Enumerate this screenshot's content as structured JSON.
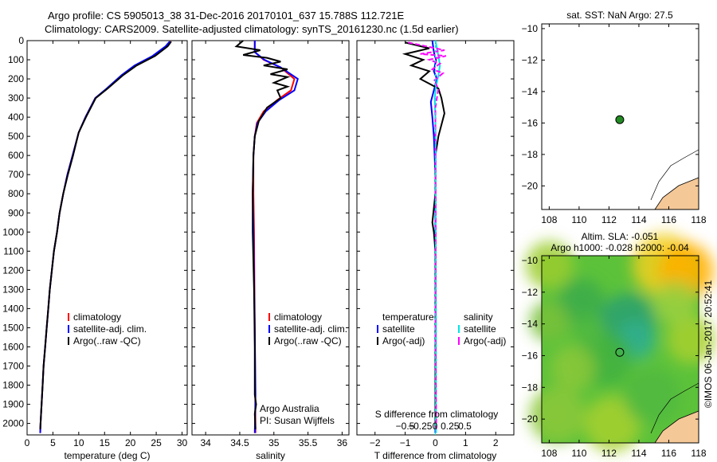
{
  "title_line1": "Argo profile: CS 5905013_38 31-Dec-2016 20170101_637 15.788S 112.721E",
  "title_line2": "Climatology: CARS2009. Satellite-adjusted climatology: synTS_20161230.nc (1.5d earlier)",
  "sst_title": "sat. SST: NaN Argo: 27.5",
  "sla_title1": "Altim. SLA: -0.051",
  "sla_title2": "Argo h1000: -0.028 h2000: -0.04",
  "watermark": "©IMOS 06-Jan-2017 20:52:41",
  "credit1": "Argo Australia",
  "credit2": "PI: Susan Wijffels",
  "s_diff_label": "S difference from climatology",
  "colors": {
    "climatology": "#ff0000",
    "satellite": "#0000ff",
    "argo": "#000000",
    "cyan": "#00e5e5",
    "magenta": "#ff00ff",
    "land": "#f5c898",
    "dot": "#228b22"
  },
  "chart_data": [
    {
      "type": "line",
      "name": "temperature",
      "xlabel": "temperature (deg C)",
      "ylabel": "",
      "xlim": [
        0,
        31
      ],
      "ylim": [
        2060,
        0
      ],
      "xticks": [
        0,
        5,
        10,
        15,
        20,
        25,
        30
      ],
      "yticks": [
        0,
        100,
        200,
        300,
        400,
        500,
        600,
        700,
        800,
        900,
        1000,
        1100,
        1200,
        1300,
        1400,
        1500,
        1600,
        1700,
        1800,
        1900,
        2000
      ],
      "legend": [
        "climatology",
        "satellite-adj. clim.",
        "Argo(..raw -QC)"
      ],
      "series": [
        {
          "name": "climatology",
          "color": "#ff0000",
          "points": [
            [
              27.8,
              5
            ],
            [
              27.0,
              30
            ],
            [
              24.5,
              80
            ],
            [
              21,
              130
            ],
            [
              18.5,
              180
            ],
            [
              15.5,
              250
            ],
            [
              13.2,
              300
            ],
            [
              11.3,
              400
            ],
            [
              10,
              480
            ],
            [
              8.8,
              600
            ],
            [
              7.8,
              700
            ],
            [
              7,
              800
            ],
            [
              6.3,
              900
            ],
            [
              5.8,
              1000
            ],
            [
              5.2,
              1100
            ],
            [
              4.8,
              1200
            ],
            [
              4.4,
              1300
            ],
            [
              4.1,
              1400
            ],
            [
              3.8,
              1500
            ],
            [
              3.5,
              1600
            ],
            [
              3.2,
              1700
            ],
            [
              3,
              1800
            ],
            [
              2.8,
              1900
            ],
            [
              2.6,
              2000
            ],
            [
              2.55,
              2050
            ]
          ]
        },
        {
          "name": "satellite-adj. clim.",
          "color": "#0000ff",
          "points": [
            [
              27.6,
              5
            ],
            [
              26.8,
              30
            ],
            [
              24.3,
              80
            ],
            [
              20.8,
              130
            ],
            [
              18.3,
              180
            ],
            [
              15.4,
              250
            ],
            [
              13.2,
              300
            ],
            [
              11.3,
              400
            ],
            [
              10,
              480
            ],
            [
              8.8,
              600
            ],
            [
              7.8,
              700
            ],
            [
              7,
              800
            ],
            [
              6.3,
              900
            ],
            [
              5.8,
              1000
            ],
            [
              5.2,
              1100
            ],
            [
              4.8,
              1200
            ],
            [
              4.4,
              1300
            ],
            [
              4.1,
              1400
            ],
            [
              3.8,
              1500
            ],
            [
              3.5,
              1600
            ],
            [
              3.2,
              1700
            ],
            [
              3,
              1800
            ],
            [
              2.8,
              1900
            ],
            [
              2.6,
              2000
            ],
            [
              2.55,
              2050
            ]
          ]
        },
        {
          "name": "Argo(..raw -QC)",
          "color": "#000000",
          "points": [
            [
              27.9,
              5
            ],
            [
              27.2,
              30
            ],
            [
              24.8,
              80
            ],
            [
              21.2,
              130
            ],
            [
              18.6,
              180
            ],
            [
              15.6,
              250
            ],
            [
              13.3,
              300
            ],
            [
              11.4,
              400
            ],
            [
              10,
              480
            ],
            [
              8.9,
              600
            ],
            [
              7.9,
              700
            ],
            [
              7,
              800
            ],
            [
              6.3,
              900
            ],
            [
              5.8,
              1000
            ],
            [
              5.2,
              1100
            ],
            [
              4.8,
              1200
            ],
            [
              4.4,
              1300
            ],
            [
              4.1,
              1400
            ],
            [
              3.8,
              1500
            ],
            [
              3.5,
              1600
            ],
            [
              3.2,
              1700
            ],
            [
              3,
              1800
            ],
            [
              2.8,
              1900
            ],
            [
              2.6,
              2000
            ],
            [
              2.55,
              2030
            ]
          ]
        }
      ]
    },
    {
      "type": "line",
      "name": "salinity",
      "xlabel": "salinity",
      "ylabel": "",
      "xlim": [
        33.8,
        36.1
      ],
      "ylim": [
        2060,
        0
      ],
      "xticks": [
        34,
        34.5,
        35,
        35.5,
        36
      ],
      "legend": [
        "climatology",
        "satellite-adj. clim.",
        "Argo(..raw -QC)"
      ],
      "series": [
        {
          "name": "climatology",
          "color": "#ff0000",
          "points": [
            [
              34.72,
              0
            ],
            [
              34.72,
              60
            ],
            [
              34.85,
              100
            ],
            [
              35.1,
              140
            ],
            [
              35.3,
              200
            ],
            [
              35.25,
              260
            ],
            [
              35.05,
              310
            ],
            [
              34.85,
              370
            ],
            [
              34.75,
              430
            ],
            [
              34.72,
              500
            ],
            [
              34.7,
              600
            ],
            [
              34.7,
              800
            ],
            [
              34.71,
              1000
            ],
            [
              34.72,
              1500
            ],
            [
              34.73,
              2050
            ]
          ]
        },
        {
          "name": "satellite-adj. clim.",
          "color": "#0000ff",
          "points": [
            [
              34.72,
              0
            ],
            [
              34.72,
              60
            ],
            [
              34.86,
              100
            ],
            [
              35.1,
              140
            ],
            [
              35.35,
              200
            ],
            [
              35.3,
              260
            ],
            [
              35.08,
              310
            ],
            [
              34.88,
              370
            ],
            [
              34.76,
              430
            ],
            [
              34.72,
              500
            ],
            [
              34.7,
              600
            ],
            [
              34.69,
              800
            ],
            [
              34.7,
              1000
            ],
            [
              34.72,
              1500
            ],
            [
              34.73,
              1850
            ],
            [
              34.72,
              2050
            ]
          ]
        },
        {
          "name": "Argo(..raw -QC)",
          "color": "#000000",
          "points": [
            [
              34.55,
              0
            ],
            [
              34.45,
              30
            ],
            [
              34.8,
              50
            ],
            [
              34.55,
              75
            ],
            [
              34.9,
              90
            ],
            [
              35.1,
              110
            ],
            [
              34.85,
              130
            ],
            [
              35.2,
              150
            ],
            [
              34.95,
              175
            ],
            [
              35.2,
              190
            ],
            [
              35.0,
              220
            ],
            [
              35.2,
              240
            ],
            [
              35.05,
              260
            ],
            [
              35.1,
              300
            ],
            [
              34.9,
              350
            ],
            [
              34.78,
              420
            ],
            [
              34.72,
              500
            ],
            [
              34.7,
              600
            ],
            [
              34.69,
              800
            ],
            [
              34.69,
              1000
            ],
            [
              34.71,
              1300
            ],
            [
              34.72,
              1600
            ],
            [
              34.72,
              1850
            ],
            [
              34.74,
              1900
            ],
            [
              34.72,
              1950
            ],
            [
              34.73,
              2030
            ]
          ]
        }
      ]
    },
    {
      "type": "line",
      "name": "difference",
      "xlabel": "T difference from climatology",
      "ylabel": "",
      "xlim": [
        -2.6,
        2.6
      ],
      "ylim": [
        2060,
        0
      ],
      "xticks": [
        -2,
        -1,
        0,
        1,
        2
      ],
      "x2label": "S difference from climatology",
      "x2ticks": [
        -0.5,
        -0.25,
        0,
        0.25,
        0.5
      ],
      "legend": [
        "temperature",
        "satellite",
        "Argo(-adj)",
        "salinity",
        "satellite",
        "Argo(-adj)"
      ],
      "series": [
        {
          "name": "temperature satellite",
          "color": "#0000ff",
          "points": [
            [
              -0.1,
              0
            ],
            [
              -0.05,
              60
            ],
            [
              0.02,
              100
            ],
            [
              -0.05,
              160
            ],
            [
              0.05,
              200
            ],
            [
              -0.05,
              260
            ],
            [
              -0.15,
              320
            ],
            [
              -0.1,
              400
            ],
            [
              -0.05,
              500
            ],
            [
              0,
              700
            ],
            [
              0,
              1000
            ],
            [
              0,
              1500
            ],
            [
              0,
              2050
            ]
          ]
        },
        {
          "name": "temperature Argo(-adj)",
          "color": "#000000",
          "points": [
            [
              -1.0,
              10
            ],
            [
              -0.2,
              40
            ],
            [
              -1.0,
              70
            ],
            [
              -0.4,
              100
            ],
            [
              -0.8,
              130
            ],
            [
              -0.2,
              160
            ],
            [
              -0.5,
              200
            ],
            [
              0.1,
              250
            ],
            [
              0.2,
              300
            ],
            [
              0.3,
              380
            ],
            [
              0.2,
              440
            ],
            [
              0.1,
              500
            ],
            [
              0,
              600
            ],
            [
              0,
              800
            ],
            [
              -0.1,
              950
            ],
            [
              -0.05,
              1000
            ],
            [
              0,
              1100
            ],
            [
              0,
              1500
            ],
            [
              0,
              2030
            ]
          ]
        },
        {
          "name": "salinity satellite",
          "color": "#00e5e5",
          "points": [
            [
              0.0,
              0
            ],
            [
              0.05,
              40
            ],
            [
              0.1,
              80
            ],
            [
              0.15,
              130
            ],
            [
              0.1,
              180
            ],
            [
              0.02,
              240
            ],
            [
              -0.02,
              300
            ],
            [
              0,
              400
            ],
            [
              0.01,
              600
            ],
            [
              0.01,
              1000
            ],
            [
              0.02,
              1500
            ],
            [
              0.02,
              2050
            ]
          ]
        },
        {
          "name": "salinity Argo(-adj)",
          "color": "#ff00ff",
          "points": [
            [
              -0.9,
              10
            ],
            [
              -0.3,
              30
            ],
            [
              0.3,
              50
            ],
            [
              -0.5,
              70
            ],
            [
              0.35,
              80
            ],
            [
              -0.2,
              100
            ],
            [
              0.15,
              120
            ],
            [
              -0.1,
              150
            ],
            [
              0.25,
              170
            ],
            [
              -0.05,
              210
            ],
            [
              0.1,
              250
            ],
            [
              0,
              350
            ],
            [
              0,
              500
            ],
            [
              0.01,
              1000
            ],
            [
              0,
              1500
            ],
            [
              0.03,
              2030
            ]
          ]
        }
      ]
    },
    {
      "type": "scatter",
      "name": "sst_map",
      "xlim": [
        107.5,
        118
      ],
      "ylim": [
        -21.5,
        -9.7
      ],
      "xticks": [
        108,
        110,
        112,
        114,
        116,
        118
      ],
      "yticks": [
        -20,
        -18,
        -16,
        -14,
        -12,
        -10
      ],
      "points": [
        [
          112.72,
          -15.79
        ]
      ]
    },
    {
      "type": "heatmap",
      "name": "sla_map",
      "xlim": [
        107.5,
        118
      ],
      "ylim": [
        -21.5,
        -9.7
      ],
      "xticks": [
        108,
        110,
        112,
        114,
        116,
        118
      ],
      "yticks": [
        -20,
        -18,
        -16,
        -14,
        -12,
        -10
      ],
      "points": [
        [
          112.72,
          -15.79
        ]
      ]
    }
  ]
}
